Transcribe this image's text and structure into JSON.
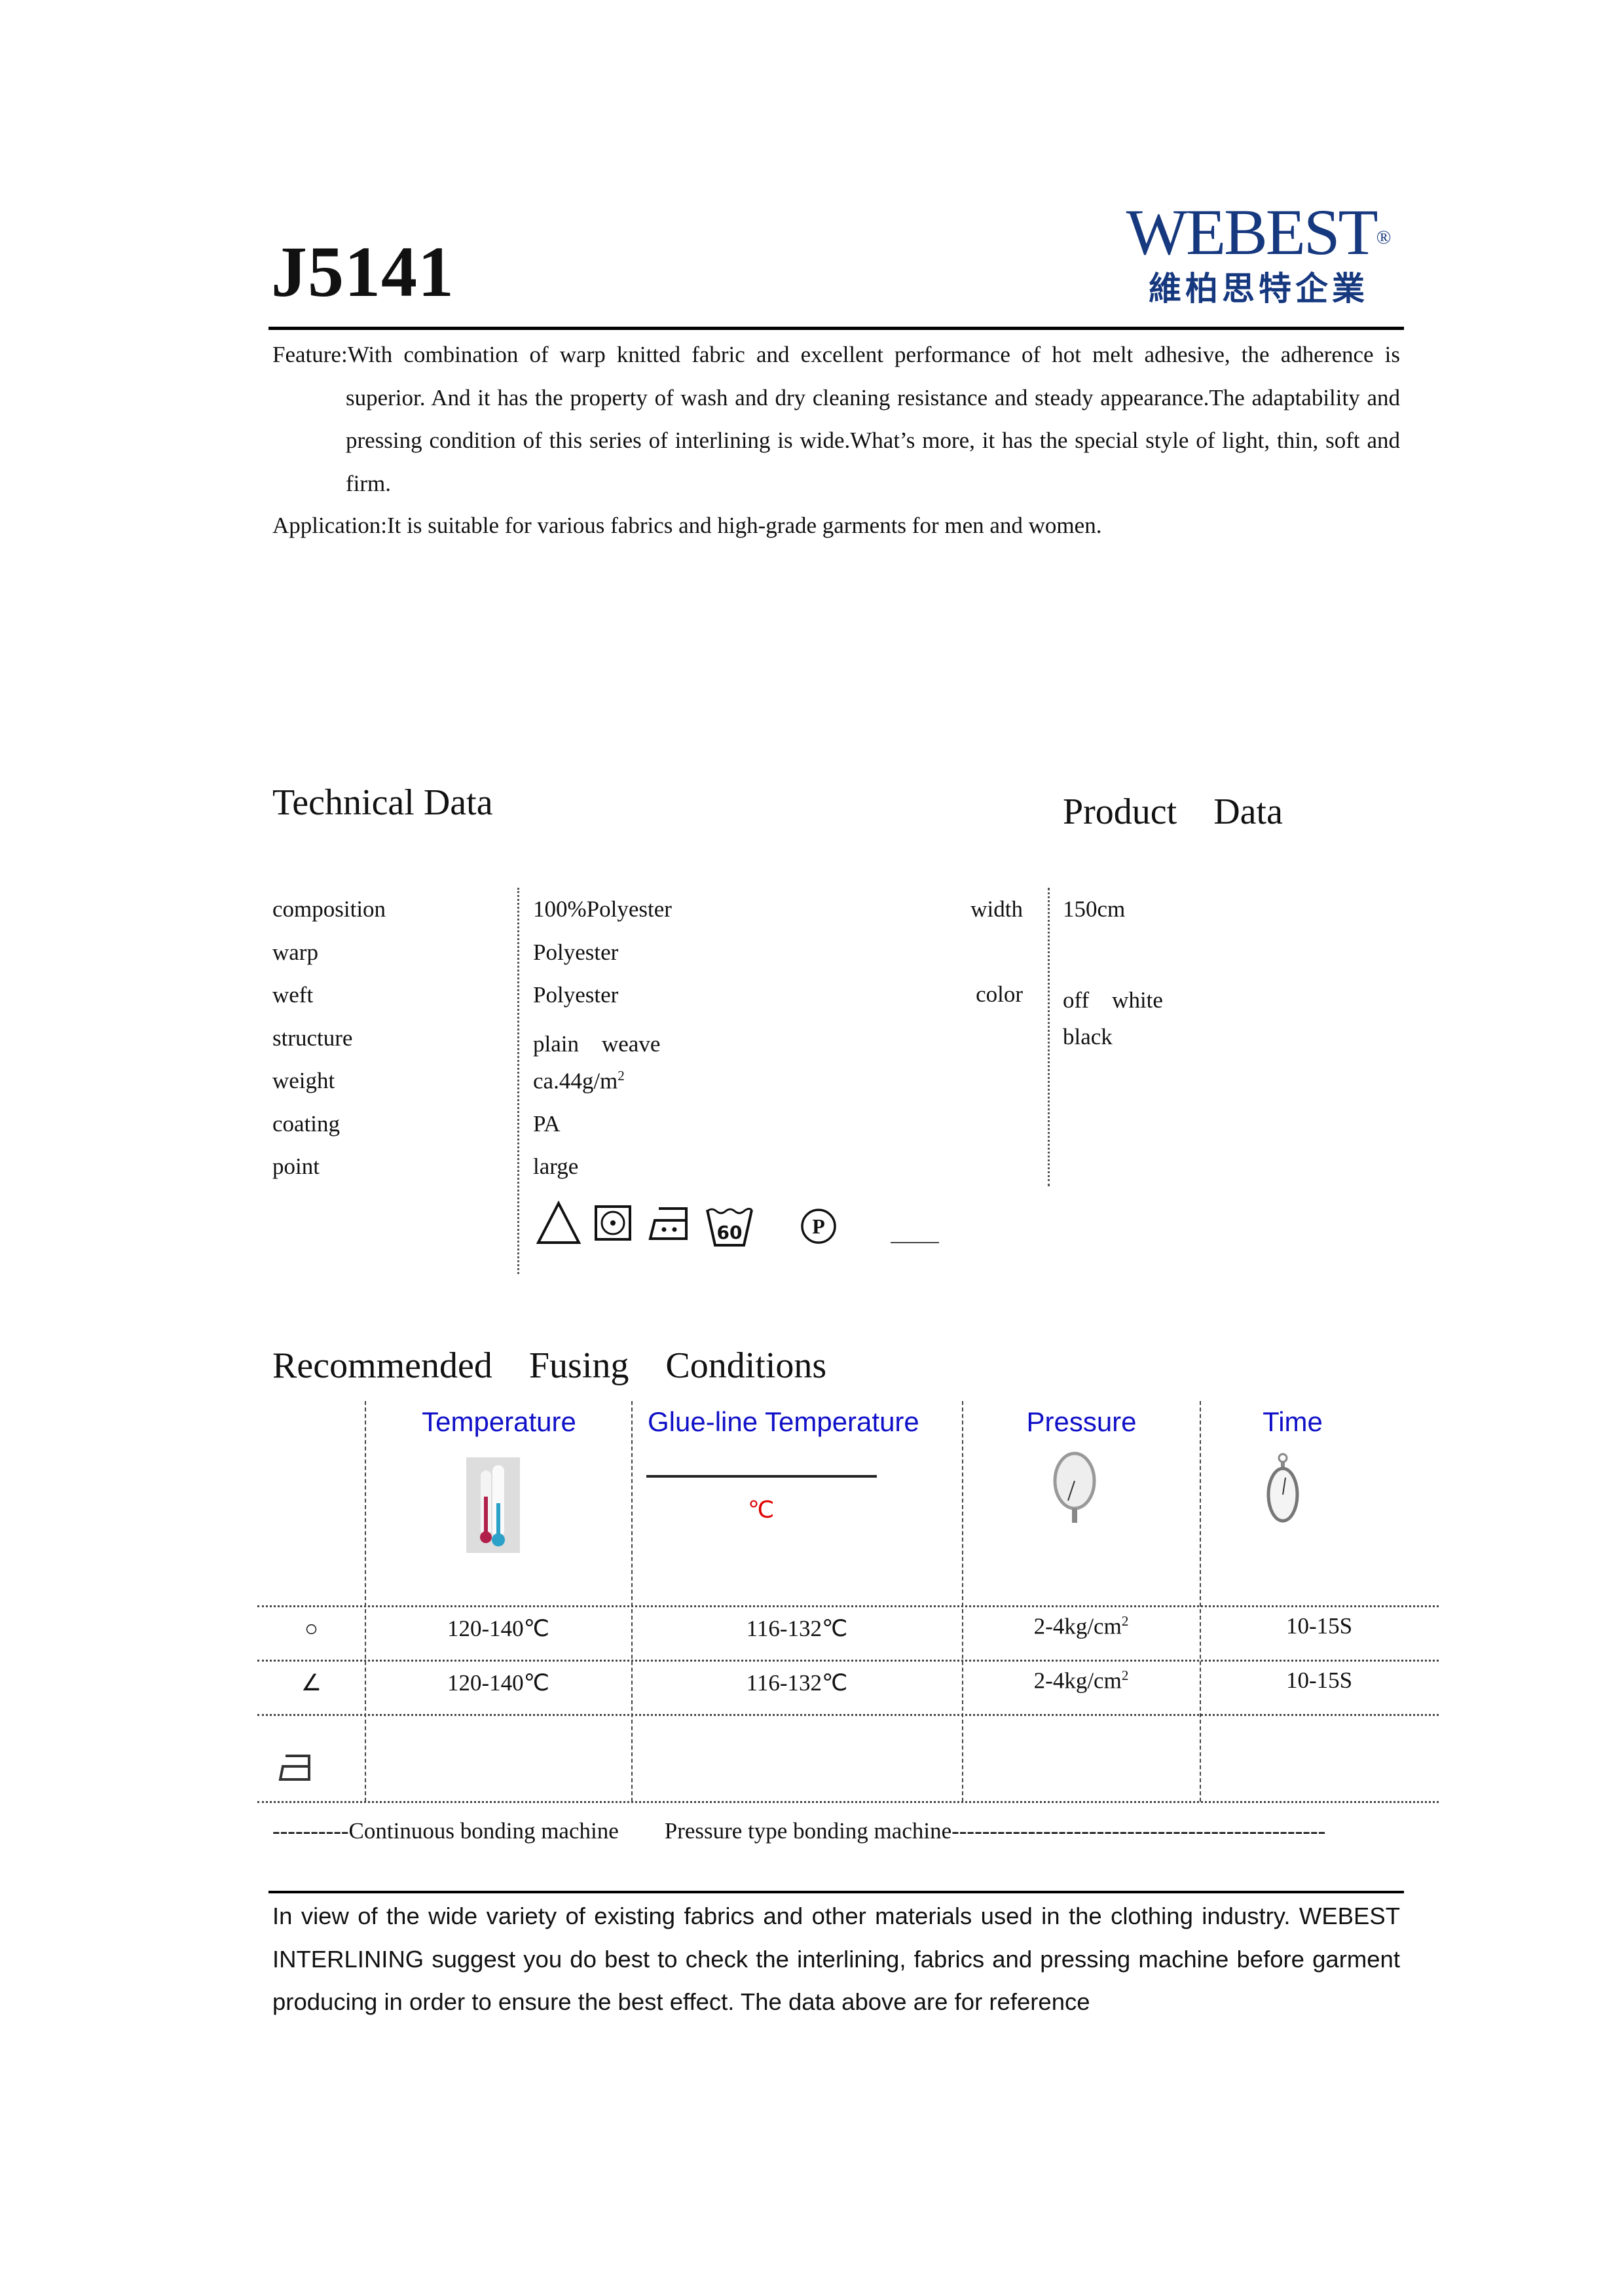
{
  "header": {
    "product_code": "J5141",
    "logo": {
      "en": "WEBEST",
      "registered": "®",
      "zh": "維柏思特企業"
    }
  },
  "description": {
    "feature_label": "Feature:",
    "feature_text": "With combination of warp knitted fabric and excellent performance of hot melt adhesive, the adherence is superior. And it has the property of wash and dry cleaning resistance and steady appearance.The adaptability and pressing condition of this series of interlining is wide.What’s more, it has the special style of light, thin, soft and firm.",
    "application_label": "Application:",
    "application_text": "It is suitable for various fabrics and high-grade garments for men and women."
  },
  "technical": {
    "heading": "Technical Data",
    "rows": [
      {
        "label": "composition",
        "value": "100%Polyester"
      },
      {
        "label": "warp",
        "value": "Polyester"
      },
      {
        "label": "weft",
        "value": "Polyester"
      },
      {
        "label": "structure",
        "value": "plain　weave"
      },
      {
        "label": "weight",
        "value": "ca.44g/m",
        "sup": "2"
      },
      {
        "label": "coating",
        "value": "PA"
      },
      {
        "label": "point",
        "value": "large"
      }
    ],
    "care_icons": [
      "bleach-triangle-icon",
      "tumble-dry-icon",
      "iron-two-dots-icon",
      "wash-60-icon",
      "dry-clean-p-icon"
    ],
    "care_wash_temp": "60",
    "care_dry_clean": "P"
  },
  "product": {
    "heading": "Product　Data",
    "width_label": "width",
    "width_value": "150cm",
    "color_label": "color",
    "colors": [
      "off　white",
      "black"
    ]
  },
  "fusing": {
    "heading": "Recommended　Fusing　Conditions",
    "columns": [
      "Temperature",
      "Glue-line Temperature",
      "Pressure",
      "Time"
    ],
    "glue_unit": "℃",
    "accent_color": "#1010c8",
    "rows": [
      {
        "icon": "circle-icon",
        "symbol": "○",
        "temperature": "120-140℃",
        "glue": "116-132℃",
        "pressure": "2-4kg/cm",
        "pressure_sup": "2",
        "time": "10-15S"
      },
      {
        "icon": "angle-icon",
        "symbol": "∠",
        "temperature": "120-140℃",
        "glue": "116-132℃",
        "pressure": "2-4kg/cm",
        "pressure_sup": "2",
        "time": "10-15S"
      },
      {
        "icon": "iron-icon"
      }
    ],
    "footer": "----------Continuous bonding machine　　Pressure type bonding machine-------------------------------------------------"
  },
  "note": "In view of the wide variety of existing fabrics and other materials used in the clothing industry. WEBEST INTERLINING suggest you do best to check the interlining, fabrics and pressing machine before garment producing in order to ensure the best effect. The data above are for reference"
}
